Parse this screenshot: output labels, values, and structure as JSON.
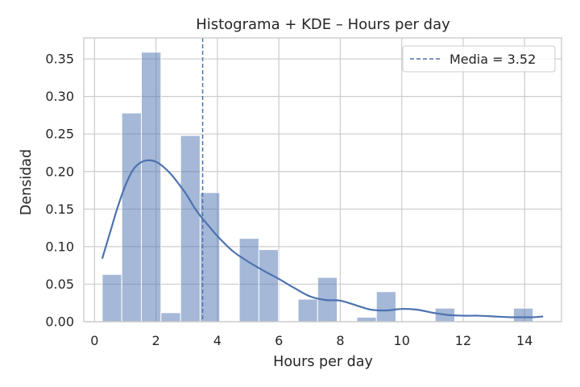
{
  "chart_data": {
    "type": "bar",
    "title": "Histograma + KDE – Hours per day",
    "xlabel": "Hours per day",
    "ylabel": "Densidad",
    "xlim": [
      -0.35,
      15.2
    ],
    "ylim": [
      0,
      0.378
    ],
    "x_ticks": [
      0,
      2,
      4,
      6,
      8,
      10,
      12,
      14
    ],
    "x_tick_labels": [
      "0",
      "2",
      "4",
      "6",
      "8",
      "10",
      "12",
      "14"
    ],
    "y_ticks": [
      0.0,
      0.05,
      0.1,
      0.15,
      0.2,
      0.25,
      0.3,
      0.35
    ],
    "y_tick_labels": [
      "0.00",
      "0.05",
      "0.10",
      "0.15",
      "0.20",
      "0.25",
      "0.30",
      "0.35"
    ],
    "grid": true,
    "bar_color": "#4c72b0",
    "bar_opacity": 0.5,
    "bin_width": 0.6375,
    "bins": [
      {
        "x_start": 0.25,
        "value": 0.063
      },
      {
        "x_start": 0.8875,
        "value": 0.278
      },
      {
        "x_start": 1.525,
        "value": 0.359
      },
      {
        "x_start": 2.1625,
        "value": 0.012
      },
      {
        "x_start": 2.8,
        "value": 0.248
      },
      {
        "x_start": 3.4375,
        "value": 0.172
      },
      {
        "x_start": 4.075,
        "value": 0.0
      },
      {
        "x_start": 4.7125,
        "value": 0.111
      },
      {
        "x_start": 5.35,
        "value": 0.096
      },
      {
        "x_start": 5.9875,
        "value": 0.0
      },
      {
        "x_start": 6.625,
        "value": 0.03
      },
      {
        "x_start": 7.2625,
        "value": 0.059
      },
      {
        "x_start": 7.9,
        "value": 0.0
      },
      {
        "x_start": 8.5375,
        "value": 0.006
      },
      {
        "x_start": 9.175,
        "value": 0.04
      },
      {
        "x_start": 9.8125,
        "value": 0.0
      },
      {
        "x_start": 10.45,
        "value": 0.0
      },
      {
        "x_start": 11.0875,
        "value": 0.018
      },
      {
        "x_start": 11.725,
        "value": 0.0
      },
      {
        "x_start": 12.3625,
        "value": 0.0
      },
      {
        "x_start": 13.0,
        "value": 0.0
      },
      {
        "x_start": 13.6375,
        "value": 0.018
      }
    ],
    "kde": {
      "name": "KDE",
      "color": "#4c72b0",
      "x": [
        0.25,
        0.5,
        0.75,
        1.0,
        1.25,
        1.5,
        1.75,
        2.0,
        2.25,
        2.5,
        2.75,
        3.0,
        3.25,
        3.5,
        3.75,
        4.0,
        4.5,
        5.0,
        5.5,
        6.0,
        6.5,
        7.0,
        7.5,
        8.0,
        8.5,
        9.0,
        9.5,
        10.0,
        10.5,
        11.0,
        11.5,
        12.0,
        12.5,
        13.0,
        13.5,
        14.0,
        14.3,
        14.6
      ],
      "y": [
        0.084,
        0.118,
        0.152,
        0.181,
        0.202,
        0.212,
        0.215,
        0.213,
        0.206,
        0.196,
        0.183,
        0.169,
        0.152,
        0.138,
        0.126,
        0.114,
        0.094,
        0.08,
        0.068,
        0.057,
        0.045,
        0.034,
        0.029,
        0.028,
        0.022,
        0.016,
        0.015,
        0.017,
        0.016,
        0.012,
        0.009,
        0.008,
        0.008,
        0.007,
        0.006,
        0.006,
        0.006,
        0.007
      ]
    },
    "mean_line": {
      "x": 3.52,
      "label": "Media = 3.52",
      "color": "#4c72b0",
      "style": "dashed"
    },
    "legend": {
      "placement": "top-right",
      "entries": [
        "Media = 3.52"
      ]
    }
  }
}
